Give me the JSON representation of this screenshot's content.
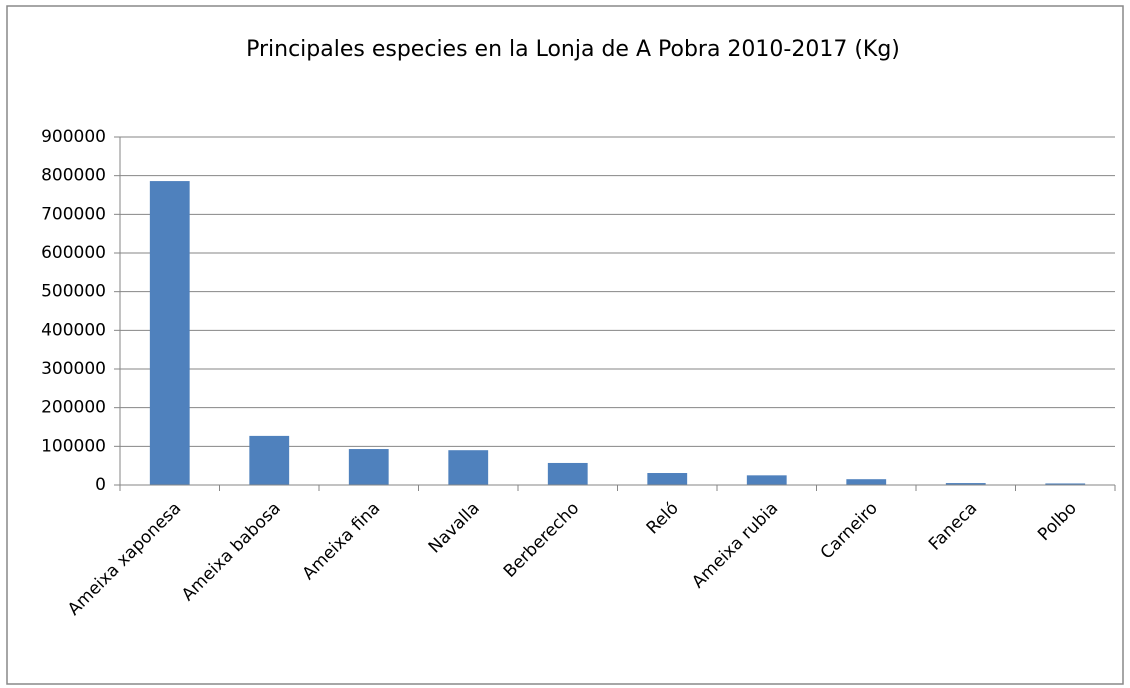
{
  "chart_data": {
    "type": "bar",
    "title": "Principales especies en la Lonja de A Pobra 2010-2017 (Kg)",
    "categories": [
      "Ameixa xaponesa",
      "Ameixa babosa",
      "Ameixa fina",
      "Navalla",
      "Berberecho",
      "Reló",
      "Ameixa rubia",
      "Carneiro",
      "Faneca",
      "Polbo"
    ],
    "values": [
      786000,
      127000,
      93000,
      90000,
      57000,
      31000,
      25000,
      15000,
      5000,
      4000
    ],
    "color": "#4f81bd",
    "ylim": [
      0,
      900000
    ],
    "yticks": [
      0,
      100000,
      200000,
      300000,
      400000,
      500000,
      600000,
      700000,
      800000,
      900000
    ],
    "grid": true
  }
}
